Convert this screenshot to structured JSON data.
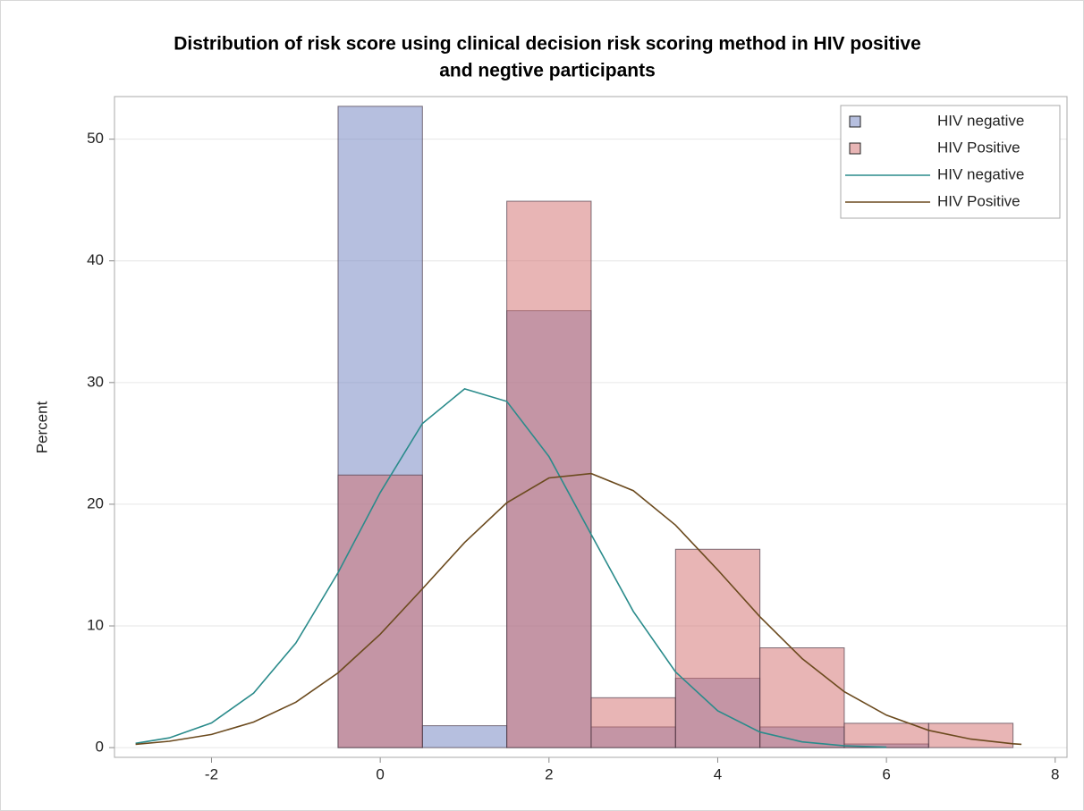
{
  "chart_data": {
    "type": "histogram",
    "title": [
      "Distribution of risk score using clinical decision risk scoring method in HIV positive",
      "and negtive participants"
    ],
    "ylabel": "Percent",
    "bins": [
      -0.5,
      0.5,
      1.5,
      2.5,
      3.5,
      4.5,
      5.5,
      6.5,
      7.5
    ],
    "series": [
      {
        "name": "HIV negative",
        "color": "#6d7fbf",
        "values": [
          52.7,
          1.8,
          35.9,
          1.7,
          5.7,
          1.7,
          0.3,
          0
        ]
      },
      {
        "name": "HIV Positive",
        "color": "#d16b6b",
        "values": [
          22.4,
          0,
          44.9,
          4.1,
          16.3,
          8.2,
          2.0,
          2.0
        ]
      }
    ],
    "x": [
      -2.9,
      -2.5,
      -2,
      -1.5,
      -1,
      -0.5,
      0,
      0.5,
      1,
      1.5,
      2,
      2.5,
      3,
      3.5,
      4,
      4.5,
      5,
      5.5,
      6,
      6.5,
      7,
      7.5,
      7.6
    ],
    "curves": [
      {
        "name": "HIV negative",
        "color": "#2a8b8b",
        "values": [
          0.35,
          0.8,
          2.03,
          4.48,
          8.59,
          14.38,
          20.96,
          26.64,
          29.48,
          28.45,
          23.92,
          17.52,
          11.19,
          6.22,
          3.02,
          1.28,
          0.47,
          0.15,
          0.04,
          null,
          null,
          null,
          null
        ]
      },
      {
        "name": "HIV Positive",
        "color": "#6b4a1e",
        "values": [
          0.27,
          0.52,
          1.08,
          2.1,
          3.73,
          6.14,
          9.32,
          13.05,
          16.86,
          20.12,
          22.16,
          22.52,
          21.12,
          18.28,
          14.6,
          10.76,
          7.32,
          4.59,
          2.67,
          1.42,
          0.7,
          0.32,
          0.27
        ]
      }
    ],
    "xlim": [
      -3.15,
      8.14
    ],
    "ylim": [
      -0.8,
      53.5
    ],
    "xticks": [
      -2,
      0,
      2,
      4,
      6,
      8
    ],
    "yticks": [
      0,
      10,
      20,
      30,
      40,
      50
    ],
    "grid": true,
    "legend": "top-right"
  }
}
